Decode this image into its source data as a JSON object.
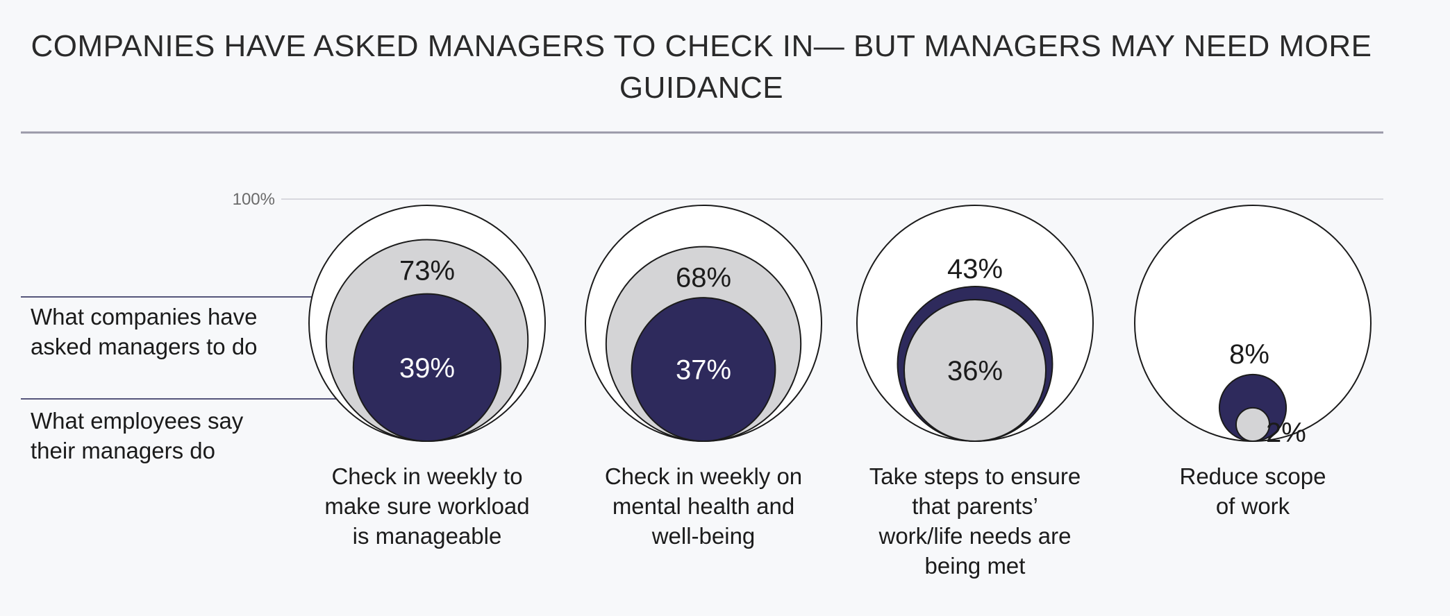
{
  "chart_data": {
    "type": "bubble",
    "title_lines": [
      "COMPANIES HAVE ASKED MANAGERS TO CHECK IN— BUT MANAGERS MAY NEED MORE",
      "GUIDANCE"
    ],
    "y_tick_label": "100%",
    "ylim": [
      0,
      100
    ],
    "legend": [
      {
        "name": "What companies have asked managers to do",
        "lines": [
          "What companies have",
          "asked managers to do"
        ],
        "fill": "#d4d4d6"
      },
      {
        "name": "What employees say their managers do",
        "lines": [
          "What employees say",
          "their managers do"
        ],
        "fill": "#2e2a5c"
      }
    ],
    "categories": [
      {
        "lines": [
          "Check in weekly to",
          "make sure workload",
          "is manageable"
        ]
      },
      {
        "lines": [
          "Check in weekly on",
          "mental health and",
          "well-being"
        ]
      },
      {
        "lines": [
          "Take steps to ensure",
          "that parents’",
          "work/life needs are",
          "being met"
        ]
      },
      {
        "lines": [
          "Reduce scope",
          "of work"
        ]
      }
    ],
    "series": [
      {
        "name": "What companies have asked managers to do",
        "values": [
          73,
          68,
          36,
          2
        ],
        "labels": [
          "73%",
          "68%",
          "36%",
          "2%"
        ]
      },
      {
        "name": "What employees say their managers do",
        "values": [
          39,
          37,
          43,
          8
        ],
        "labels": [
          "39%",
          "37%",
          "43%",
          "8%"
        ]
      }
    ],
    "colors": {
      "companies": "#d4d4d6",
      "employees": "#2e2a5c",
      "outline": "#1b1b1b",
      "rule": "#9a99a8",
      "gridline": "#d8d8de",
      "legend_line": "#55557a"
    }
  }
}
